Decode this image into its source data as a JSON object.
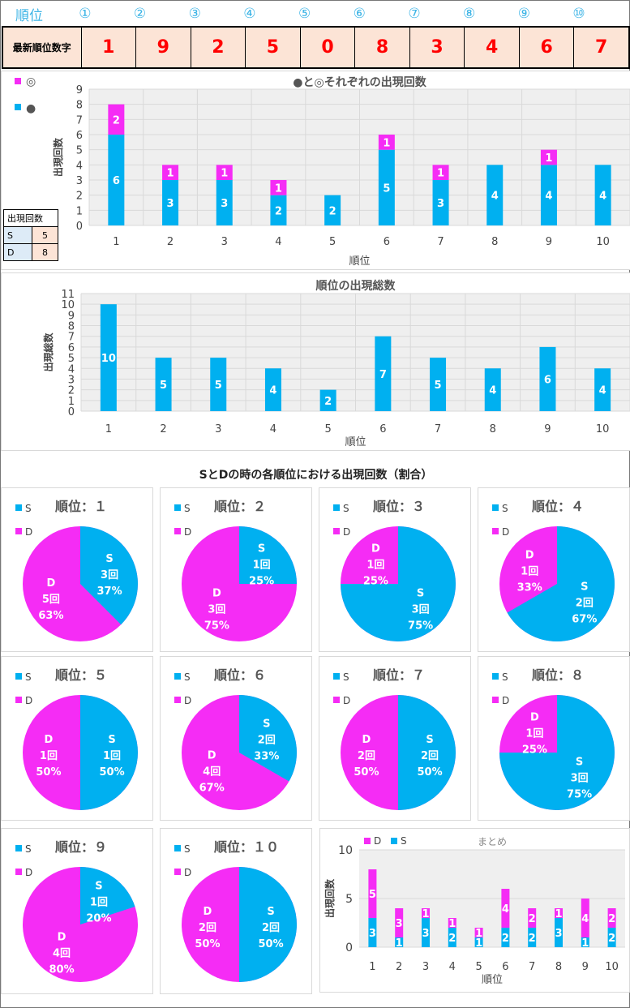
{
  "header": {
    "label": "順位",
    "positions": [
      "①",
      "②",
      "③",
      "④",
      "⑤",
      "⑥",
      "⑦",
      "⑧",
      "⑨",
      "⑩"
    ]
  },
  "latest": {
    "label": "最新順位数字",
    "digits": [
      "1",
      "9",
      "2",
      "5",
      "0",
      "8",
      "3",
      "4",
      "6",
      "7"
    ]
  },
  "colors": {
    "blue": "#00b0f0",
    "pink": "#f52cf5"
  },
  "count_table": {
    "title": "出現回数",
    "rows": [
      {
        "k": "S",
        "v": "5"
      },
      {
        "k": "D",
        "v": "8"
      }
    ]
  },
  "section_title": "SとDの時の各順位における出現回数（割合）",
  "chart_data": [
    {
      "type": "bar",
      "stacked": true,
      "title": "●と◎それぞれの出現回数",
      "xlabel": "順位",
      "ylabel": "出現回数",
      "ylim": [
        0,
        9
      ],
      "categories": [
        "1",
        "2",
        "3",
        "4",
        "5",
        "6",
        "7",
        "8",
        "9",
        "10"
      ],
      "series": [
        {
          "name": "●",
          "values": [
            6,
            3,
            3,
            2,
            2,
            5,
            3,
            4,
            4,
            4
          ]
        },
        {
          "name": "◎",
          "values": [
            2,
            1,
            1,
            1,
            0,
            1,
            1,
            0,
            1,
            0
          ]
        }
      ]
    },
    {
      "type": "bar",
      "title": "順位の出現総数",
      "xlabel": "順位",
      "ylabel": "出現総数",
      "ylim": [
        0,
        11
      ],
      "categories": [
        "1",
        "2",
        "3",
        "4",
        "5",
        "6",
        "7",
        "8",
        "9",
        "10"
      ],
      "values": [
        10,
        5,
        5,
        4,
        2,
        7,
        5,
        4,
        6,
        4
      ]
    },
    {
      "type": "pie",
      "title_prefix": "順位：",
      "titles": [
        "１",
        "２",
        "３",
        "４",
        "５",
        "６",
        "７",
        "８",
        "９",
        "１０"
      ],
      "legend": [
        "S",
        "D"
      ],
      "unit": "回",
      "S": [
        3,
        1,
        3,
        2,
        1,
        2,
        2,
        3,
        1,
        2
      ],
      "D": [
        5,
        3,
        1,
        1,
        1,
        4,
        2,
        1,
        4,
        2
      ],
      "S_pct": [
        "37%",
        "25%",
        "75%",
        "67%",
        "50%",
        "33%",
        "50%",
        "75%",
        "20%",
        "50%"
      ],
      "D_pct": [
        "63%",
        "75%",
        "25%",
        "33%",
        "50%",
        "67%",
        "50%",
        "25%",
        "80%",
        "50%"
      ]
    },
    {
      "type": "bar",
      "stacked": true,
      "title": "まとめ",
      "xlabel": "順位",
      "ylabel": "出現回数",
      "ylim": [
        0,
        10
      ],
      "yticks": [
        "0",
        "5",
        "10"
      ],
      "categories": [
        "1",
        "2",
        "3",
        "4",
        "5",
        "6",
        "7",
        "8",
        "9",
        "10"
      ],
      "series": [
        {
          "name": "S",
          "values": [
            3,
            1,
            3,
            2,
            1,
            2,
            2,
            3,
            1,
            2
          ]
        },
        {
          "name": "D",
          "values": [
            5,
            3,
            1,
            1,
            1,
            4,
            2,
            1,
            4,
            2
          ]
        }
      ],
      "legend": [
        "D",
        "S"
      ]
    }
  ]
}
